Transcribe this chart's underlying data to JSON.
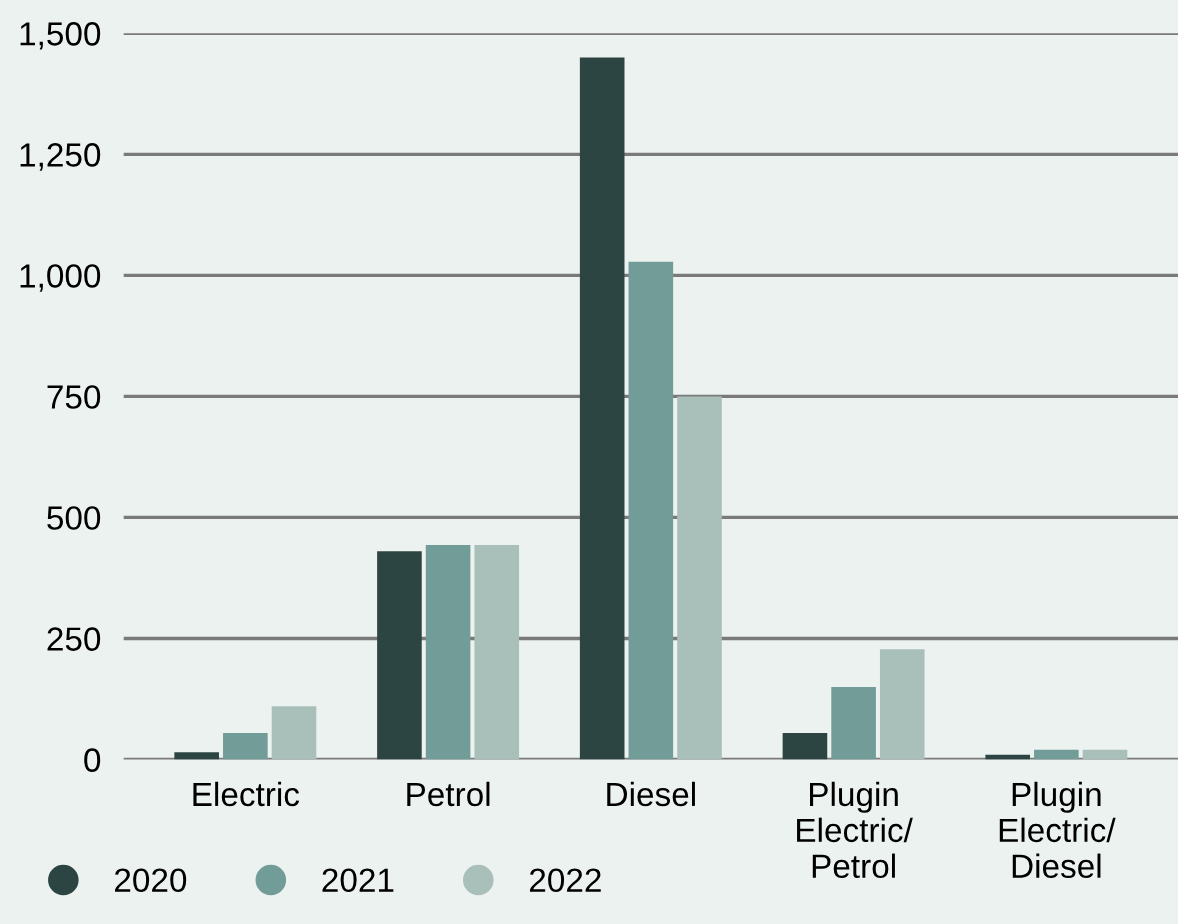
{
  "chart_data": {
    "type": "bar",
    "categories": [
      "Electric",
      "Petrol",
      "Diesel",
      "Plugin\nElectric/\nPetrol",
      "Plugin\nElectric/\nDiesel"
    ],
    "series": [
      {
        "name": "2020",
        "color": "#2c4542",
        "values": [
          15,
          430,
          1450,
          55,
          10
        ]
      },
      {
        "name": "2021",
        "color": "#729c98",
        "values": [
          55,
          443,
          1028,
          150,
          20
        ]
      },
      {
        "name": "2022",
        "color": "#a9bfb9",
        "values": [
          110,
          443,
          750,
          228,
          20
        ]
      }
    ],
    "ylim": [
      0,
      1500
    ],
    "yticks": [
      {
        "value": 0,
        "label": "0"
      },
      {
        "value": 250,
        "label": "250"
      },
      {
        "value": 500,
        "label": "500"
      },
      {
        "value": 750,
        "label": "750"
      },
      {
        "value": 1000,
        "label": "1,000"
      },
      {
        "value": 1250,
        "label": "1,250"
      },
      {
        "value": 1500,
        "label": "1,500"
      }
    ],
    "grid": "y",
    "legend": "bottom left"
  }
}
